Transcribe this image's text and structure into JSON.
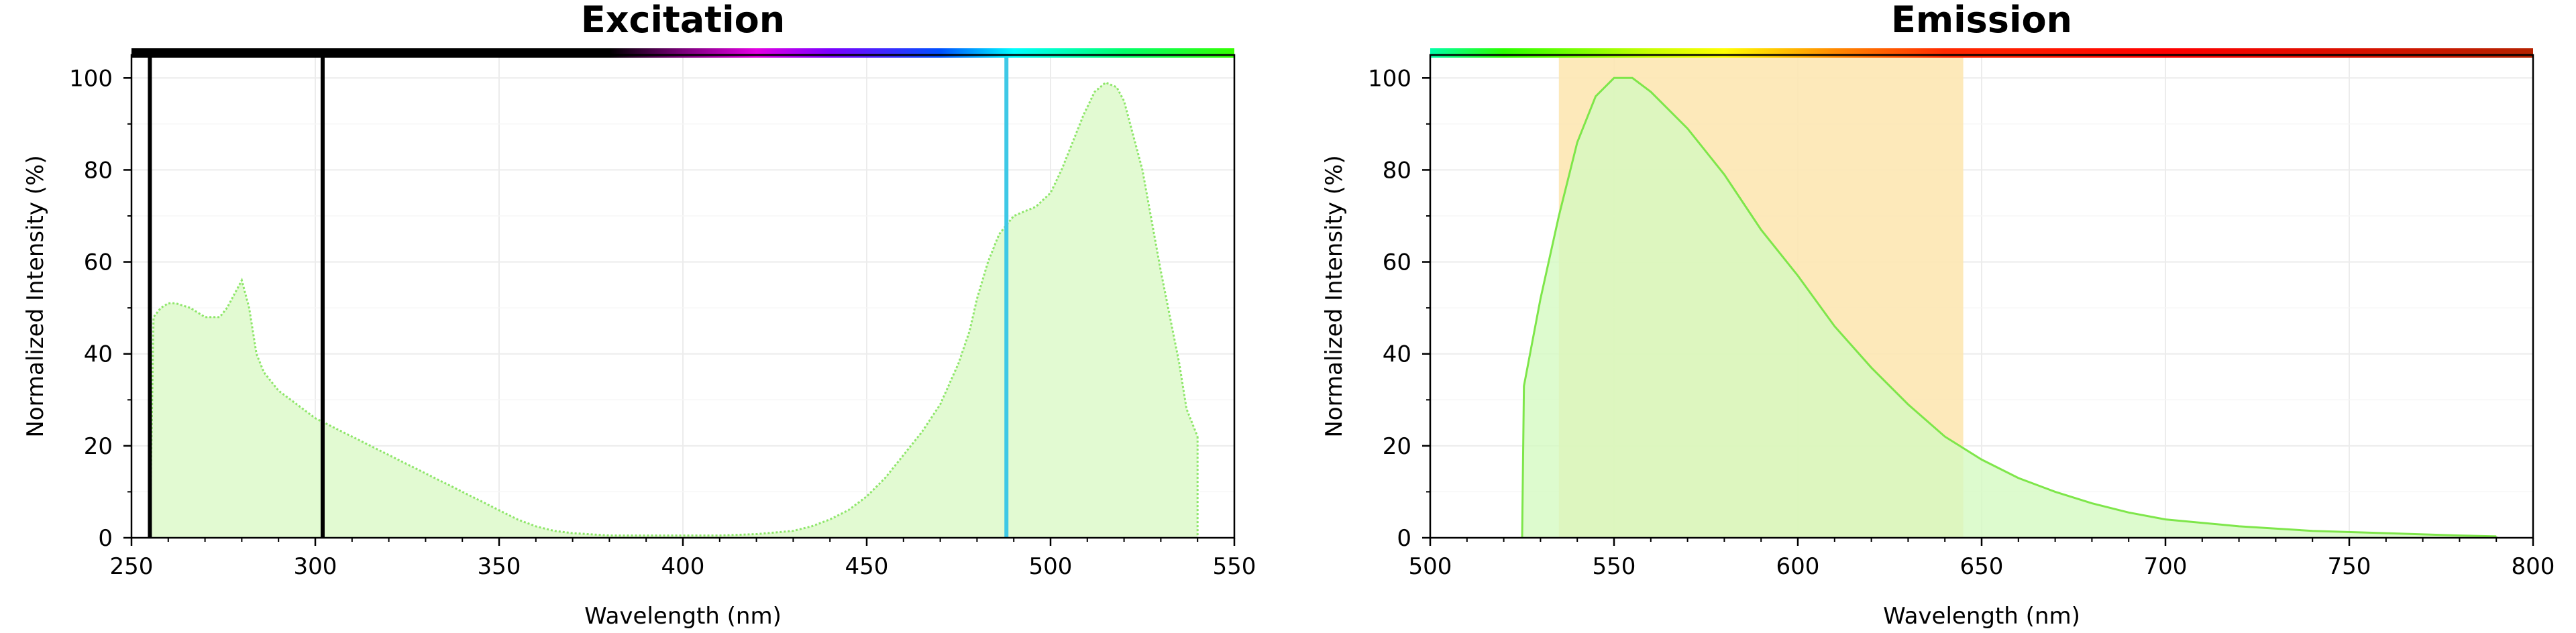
{
  "chart_data": [
    {
      "id": "excitation",
      "type": "area",
      "title": "Excitation",
      "xlabel": "Wavelength (nm)",
      "ylabel": "Normalized Intensity (%)",
      "xlim": [
        250,
        550
      ],
      "ylim": [
        0,
        105
      ],
      "xticks": [
        250,
        300,
        350,
        400,
        450,
        500,
        550
      ],
      "yticks": [
        0,
        20,
        40,
        60,
        80,
        100
      ],
      "grid": true,
      "fill_color": "#e2fad2",
      "line_color": "#8ee66a",
      "line_style": "dotted",
      "series": [
        {
          "x": [
            255,
            256,
            258,
            260,
            262,
            264,
            266,
            268,
            270,
            272,
            274,
            276,
            278,
            280,
            282,
            284,
            286,
            288,
            290,
            295,
            300,
            305,
            310,
            320,
            330,
            340,
            350,
            355,
            360,
            365,
            370,
            380,
            390,
            400,
            410,
            420,
            430,
            435,
            440,
            445,
            450,
            455,
            460,
            465,
            470,
            475,
            478,
            480,
            483,
            486,
            490,
            493,
            496,
            500,
            503,
            506,
            509,
            512,
            515,
            518,
            520,
            525,
            530,
            535,
            537,
            540
          ],
          "y": [
            0,
            48,
            50,
            51,
            51,
            50.5,
            50,
            49,
            48,
            48,
            48,
            50,
            53,
            56,
            50,
            40,
            36,
            34,
            32,
            29,
            26,
            24,
            22,
            18,
            14,
            10,
            6,
            4,
            2.5,
            1.5,
            1,
            0.5,
            0.5,
            0.5,
            0.5,
            0.8,
            1.5,
            2.5,
            4,
            6,
            9,
            13,
            18,
            23,
            29,
            38,
            45,
            52,
            60,
            66,
            70,
            71,
            72,
            75,
            80,
            86,
            92,
            97,
            99,
            98,
            95,
            80,
            58,
            38,
            28,
            22
          ]
        }
      ],
      "lines": [
        {
          "x": 255,
          "color": "#000000"
        },
        {
          "x": 302,
          "color": "#000000"
        },
        {
          "x": 488,
          "color": "#3ec8e6"
        }
      ],
      "spectrum_bar": [
        {
          "x": 250,
          "color": "#000000"
        },
        {
          "x": 380,
          "color": "#000000"
        },
        {
          "x": 400,
          "color": "#7a007a"
        },
        {
          "x": 420,
          "color": "#e300e3"
        },
        {
          "x": 440,
          "color": "#7c00ff"
        },
        {
          "x": 470,
          "color": "#0050ff"
        },
        {
          "x": 490,
          "color": "#00ffff"
        },
        {
          "x": 520,
          "color": "#00ff6a"
        },
        {
          "x": 550,
          "color": "#33ff00"
        }
      ]
    },
    {
      "id": "emission",
      "type": "area",
      "title": "Emission",
      "xlabel": "Wavelength (nm)",
      "ylabel": "Normalized Intensity (%)",
      "xlim": [
        500,
        800
      ],
      "ylim": [
        0,
        105
      ],
      "xticks": [
        500,
        550,
        600,
        650,
        700,
        750,
        800
      ],
      "yticks": [
        0,
        20,
        40,
        60,
        80,
        100
      ],
      "grid": true,
      "fill_color": "#d4fac0",
      "line_color": "#7ee64a",
      "line_style": "solid",
      "band": {
        "x": [
          535,
          645
        ],
        "color": "#fde7b3"
      },
      "series": [
        {
          "x": [
            525,
            525.5,
            530,
            535,
            540,
            545,
            550,
            555,
            560,
            565,
            570,
            575,
            580,
            590,
            600,
            610,
            620,
            630,
            640,
            650,
            660,
            670,
            680,
            690,
            700,
            720,
            740,
            760,
            780,
            790
          ],
          "y": [
            0,
            33,
            52,
            70,
            86,
            96,
            100,
            100,
            97,
            93,
            89,
            84,
            79,
            67,
            57,
            46,
            37,
            29,
            22,
            17,
            13,
            10,
            7.5,
            5.5,
            4,
            2.5,
            1.5,
            1,
            0.5,
            0.3
          ]
        }
      ],
      "spectrum_bar": [
        {
          "x": 500,
          "color": "#00ffaa"
        },
        {
          "x": 520,
          "color": "#2aff00"
        },
        {
          "x": 560,
          "color": "#c8ff00"
        },
        {
          "x": 580,
          "color": "#ffff00"
        },
        {
          "x": 610,
          "color": "#ff8a00"
        },
        {
          "x": 640,
          "color": "#ff2a00"
        },
        {
          "x": 700,
          "color": "#ff0000"
        },
        {
          "x": 800,
          "color": "#b52200"
        }
      ]
    }
  ]
}
